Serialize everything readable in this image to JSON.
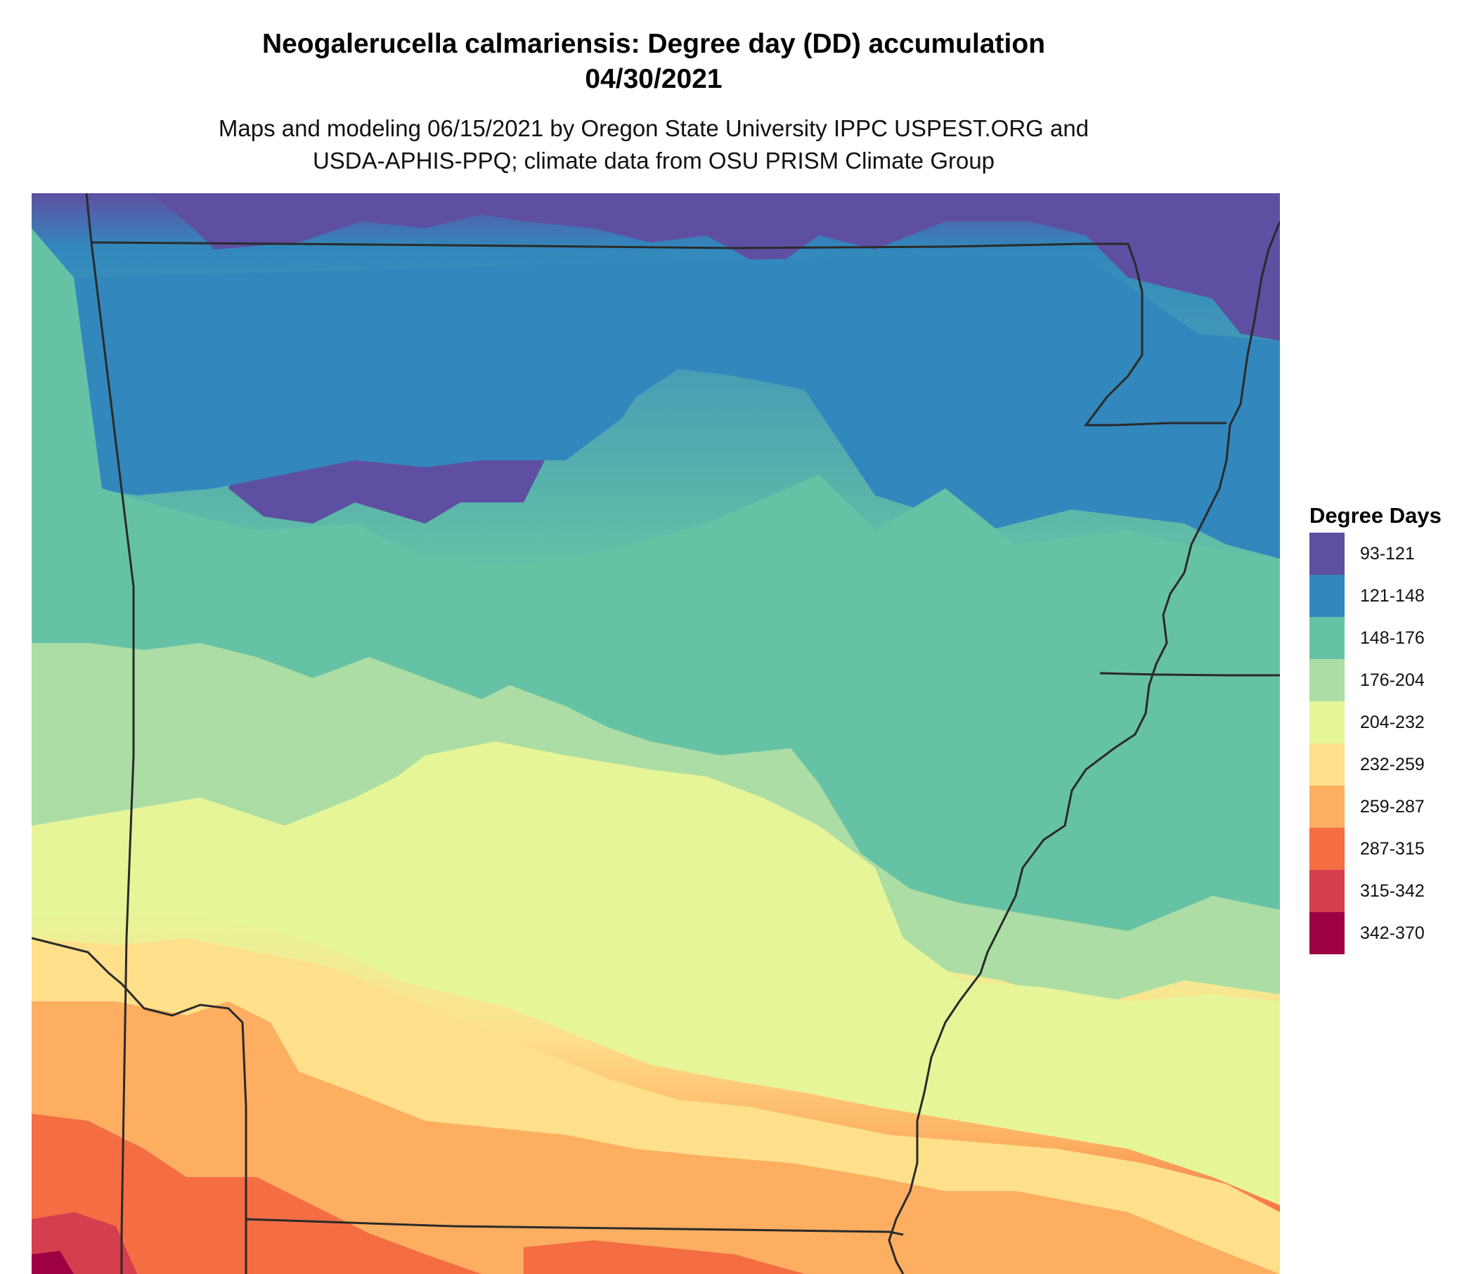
{
  "title": {
    "line1": "Neogalerucella calmariensis: Degree day (DD) accumulation",
    "line2": "04/30/2021"
  },
  "subtitle": {
    "line1": "Maps and modeling 06/15/2021 by Oregon State University IPPC USPEST.ORG and",
    "line2": "USDA-APHIS-PPQ; climate data from OSU PRISM Climate Group"
  },
  "legend": {
    "title": "Degree Days",
    "items": [
      {
        "label": "93-121",
        "color": "#5e4fa2"
      },
      {
        "label": "121-148",
        "color": "#3288bd"
      },
      {
        "label": "148-176",
        "color": "#66c2a5"
      },
      {
        "label": "176-204",
        "color": "#abdda4"
      },
      {
        "label": "204-232",
        "color": "#e6f598"
      },
      {
        "label": "232-259",
        "color": "#fee08b"
      },
      {
        "label": "259-287",
        "color": "#fdae61"
      },
      {
        "label": "287-315",
        "color": "#f46d43"
      },
      {
        "label": "315-342",
        "color": "#d53e4f"
      },
      {
        "label": "342-370",
        "color": "#9e0142"
      }
    ]
  },
  "map": {
    "region": "Arkansas and surrounding states",
    "gradient": "degree days increase from north to south",
    "border_color": "#2a2a2a"
  }
}
